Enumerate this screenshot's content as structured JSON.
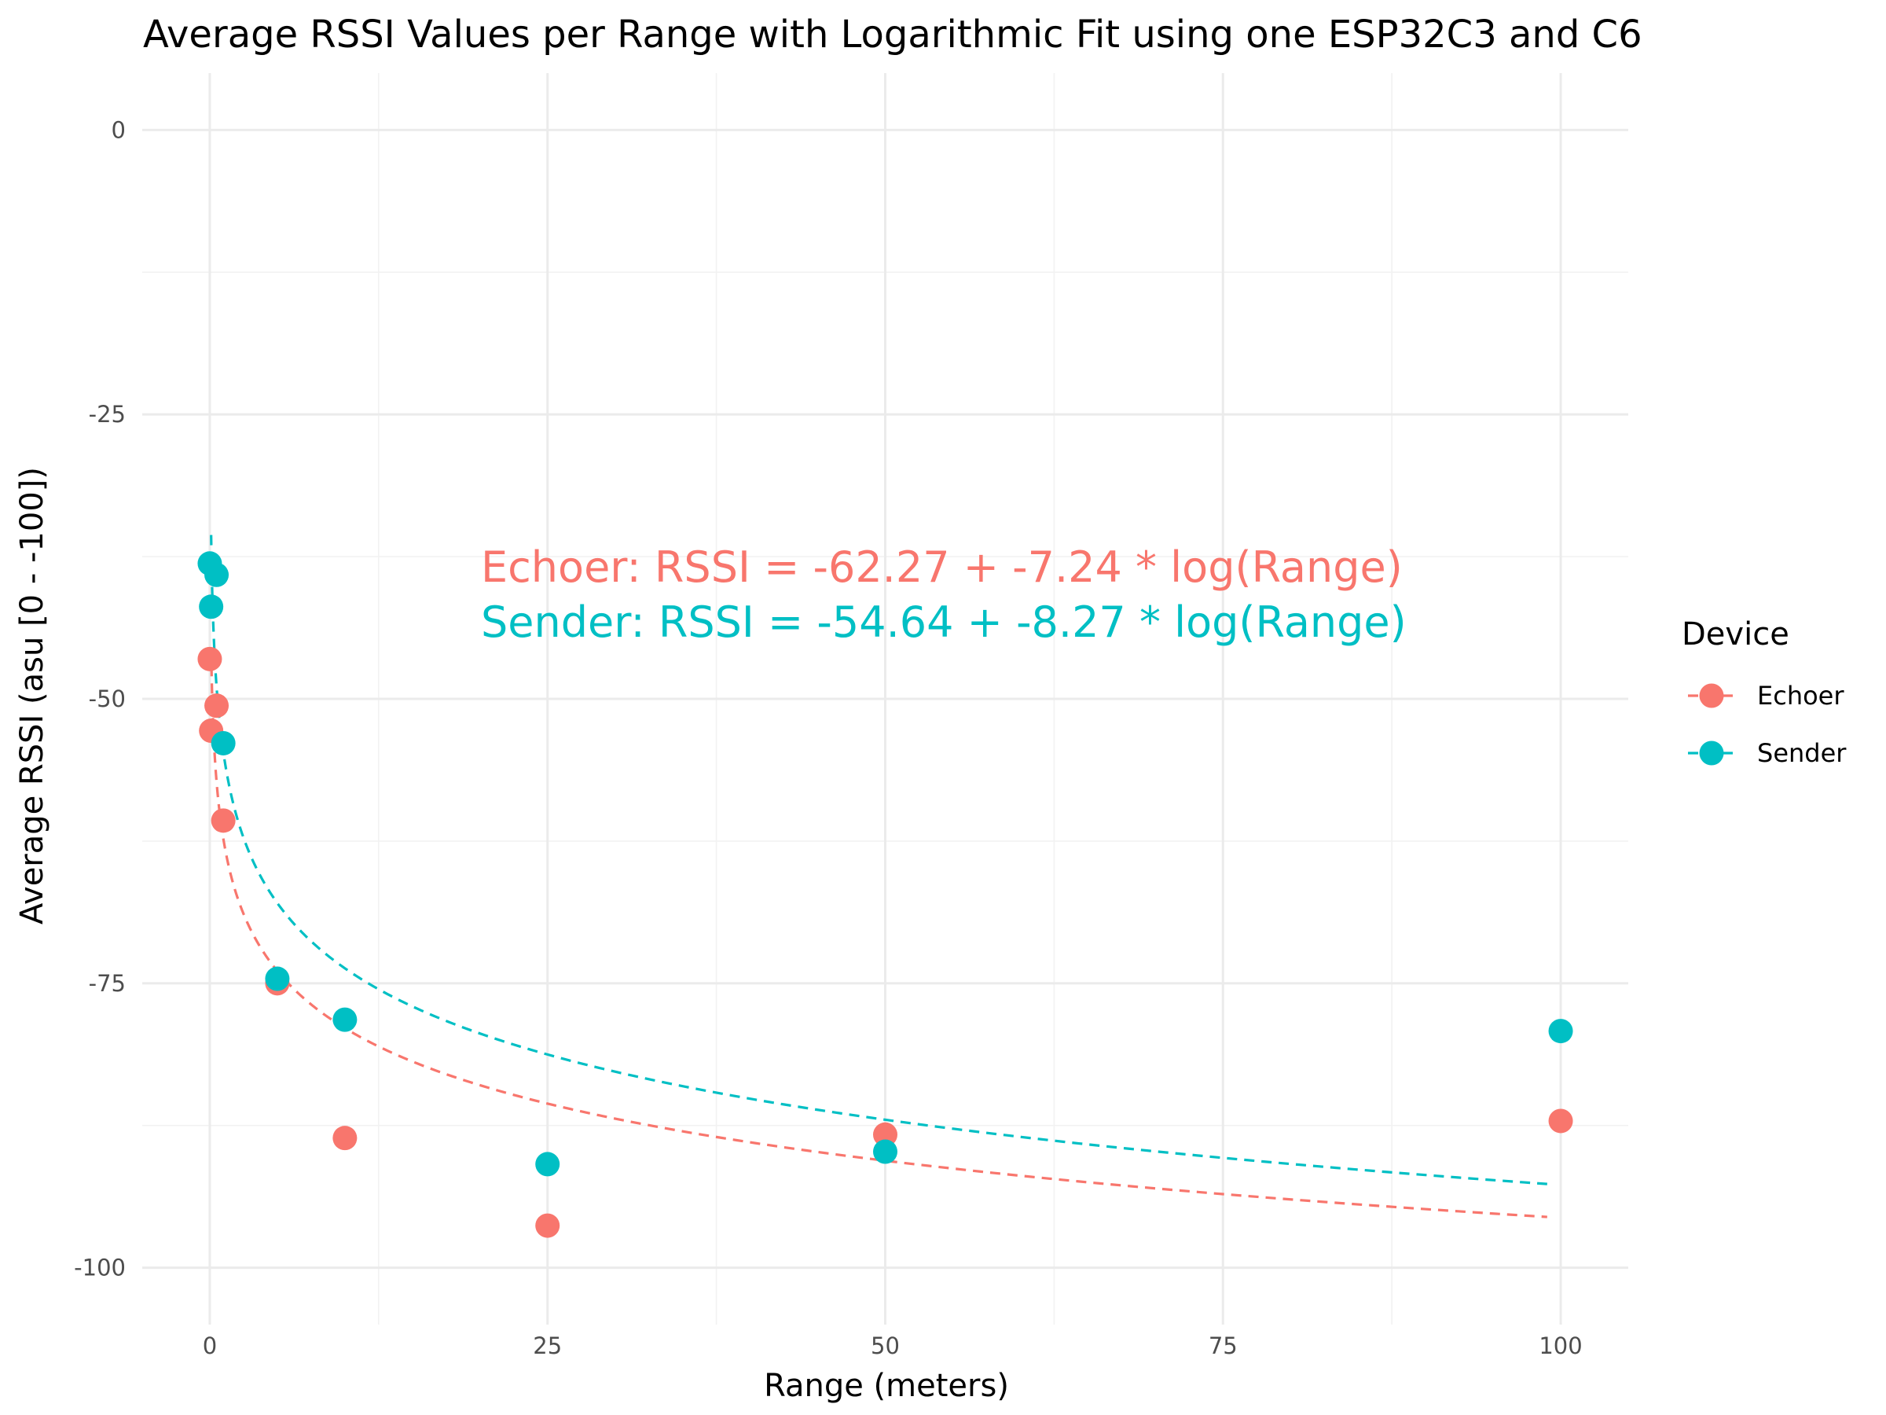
{
  "chart_data": {
    "type": "scatter",
    "title": "Average RSSI Values per Range with Logarithmic Fit using one ESP32C3 and C6",
    "xlabel": "Range (meters)",
    "ylabel": "Average RSSI (asu [0 - -100])",
    "xlim": [
      -5,
      105
    ],
    "ylim": [
      -105,
      5
    ],
    "x_ticks": [
      0,
      25,
      50,
      75,
      100
    ],
    "y_ticks": [
      0,
      -25,
      -50,
      -75,
      -100
    ],
    "x_minor": [
      12.5,
      37.5,
      62.5,
      87.5
    ],
    "y_minor": [
      -12.5,
      -37.5,
      -62.5,
      -87.5
    ],
    "grid": true,
    "legend": {
      "title": "Device",
      "position": "right"
    },
    "series": [
      {
        "name": "Echoer",
        "color": "#F8766D",
        "points": [
          {
            "x": 0,
            "y": -46.5
          },
          {
            "x": 0.1,
            "y": -52.8
          },
          {
            "x": 0.5,
            "y": -50.6
          },
          {
            "x": 1,
            "y": -60.7
          },
          {
            "x": 5,
            "y": -75
          },
          {
            "x": 10,
            "y": -88.6
          },
          {
            "x": 25,
            "y": -96.3
          },
          {
            "x": 50,
            "y": -88.3
          },
          {
            "x": 100,
            "y": -87.1
          }
        ],
        "fit": {
          "intercept": -62.27,
          "slope": -7.24,
          "x_from": 0.1,
          "x_to": 99
        }
      },
      {
        "name": "Sender",
        "color": "#00BFC4",
        "points": [
          {
            "x": 0,
            "y": -38.1
          },
          {
            "x": 0.1,
            "y": -41.9
          },
          {
            "x": 0.5,
            "y": -39.1
          },
          {
            "x": 1,
            "y": -53.9
          },
          {
            "x": 5,
            "y": -74.6
          },
          {
            "x": 10,
            "y": -78.2
          },
          {
            "x": 25,
            "y": -90.9
          },
          {
            "x": 50,
            "y": -89.8
          },
          {
            "x": 100,
            "y": -79.2
          }
        ],
        "fit": {
          "intercept": -54.64,
          "slope": -8.27,
          "x_from": 0.1,
          "x_to": 99
        }
      }
    ],
    "annotations": [
      {
        "text": "Echoer: RSSI = -62.27 + -7.24 * log(Range)",
        "color": "#F8766D"
      },
      {
        "text": "Sender: RSSI = -54.64 + -8.27 * log(Range)",
        "color": "#00BFC4"
      }
    ]
  }
}
